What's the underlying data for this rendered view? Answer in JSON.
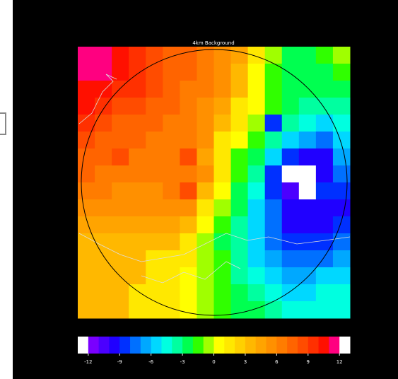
{
  "chart_data": {
    "type": "heatmap",
    "title": "4km Background",
    "zlim": [
      -13,
      13
    ],
    "colors": [
      "#ffffff",
      "#7a00ff",
      "#4b00ff",
      "#2000ff",
      "#0030ff",
      "#0070ff",
      "#00a8ff",
      "#00d8ff",
      "#00ffe0",
      "#00ffa0",
      "#00ff50",
      "#30ff00",
      "#a0ff00",
      "#ffff00",
      "#ffe800",
      "#ffd000",
      "#ffb800",
      "#ffa400",
      "#ff9000",
      "#ff7c00",
      "#ff6400",
      "#ff4c00",
      "#ff3000",
      "#ff1000",
      "#ff0080",
      "#ffffff"
    ],
    "colorbar_ticks": [
      -12,
      -9,
      -6,
      -3,
      0,
      3,
      6,
      9,
      12
    ],
    "z": [
      [
        11,
        11,
        10,
        9,
        8,
        7,
        7,
        6,
        5,
        4,
        1,
        -1,
        -3,
        -3,
        -2,
        -1
      ],
      [
        11,
        11,
        10,
        9,
        8,
        7,
        7,
        6,
        5,
        3,
        0,
        -2,
        -3,
        -3,
        -3,
        -2
      ],
      [
        10,
        10,
        9,
        9,
        8,
        7,
        6,
        6,
        5,
        3,
        0,
        -2,
        -3,
        -3,
        -3,
        -3
      ],
      [
        10,
        9,
        8,
        8,
        7,
        7,
        6,
        5,
        4,
        2,
        0,
        -2,
        -3,
        -4,
        -4,
        -4
      ],
      [
        9,
        8,
        7,
        7,
        7,
        6,
        6,
        5,
        3,
        1,
        -1,
        -9,
        -4,
        -5,
        -6,
        -5
      ],
      [
        8,
        7,
        7,
        7,
        6,
        6,
        6,
        5,
        2,
        0,
        -2,
        -4,
        -6,
        -7,
        -8,
        -6
      ],
      [
        7,
        7,
        8,
        6,
        6,
        6,
        8,
        4,
        1,
        -2,
        -3,
        -6,
        -9,
        -10,
        -10,
        -7
      ],
      [
        7,
        6,
        6,
        6,
        6,
        6,
        6,
        5,
        1,
        -2,
        -4,
        -9,
        -13,
        -13,
        -10,
        -8
      ],
      [
        6,
        6,
        5,
        5,
        5,
        6,
        8,
        3,
        0,
        -3,
        -5,
        -9,
        -11,
        -13,
        -9,
        -9
      ],
      [
        5,
        5,
        5,
        5,
        5,
        5,
        5,
        2,
        -1,
        -3,
        -6,
        -8,
        -10,
        -10,
        -10,
        -10
      ],
      [
        4,
        4,
        4,
        4,
        4,
        4,
        3,
        0,
        -2,
        -4,
        -6,
        -8,
        -10,
        -10,
        -10,
        -9
      ],
      [
        3,
        3,
        3,
        3,
        3,
        3,
        2,
        -1,
        -3,
        -4,
        -6,
        -8,
        -9,
        -9,
        -9,
        -8
      ],
      [
        3,
        3,
        3,
        3,
        2,
        1,
        1,
        -1,
        -2,
        -4,
        -6,
        -7,
        -8,
        -8,
        -8,
        -7
      ],
      [
        3,
        3,
        3,
        3,
        2,
        1,
        0,
        -1,
        -2,
        -4,
        -5,
        -6,
        -7,
        -7,
        -6,
        -6
      ],
      [
        3,
        3,
        3,
        2,
        2,
        1,
        0,
        -1,
        -2,
        -3,
        -4,
        -5,
        -6,
        -6,
        -5,
        -5
      ],
      [
        3,
        3,
        3,
        2,
        2,
        1,
        0,
        -1,
        -2,
        -3,
        -3,
        -4,
        -5,
        -5,
        -5,
        -5
      ]
    ]
  }
}
